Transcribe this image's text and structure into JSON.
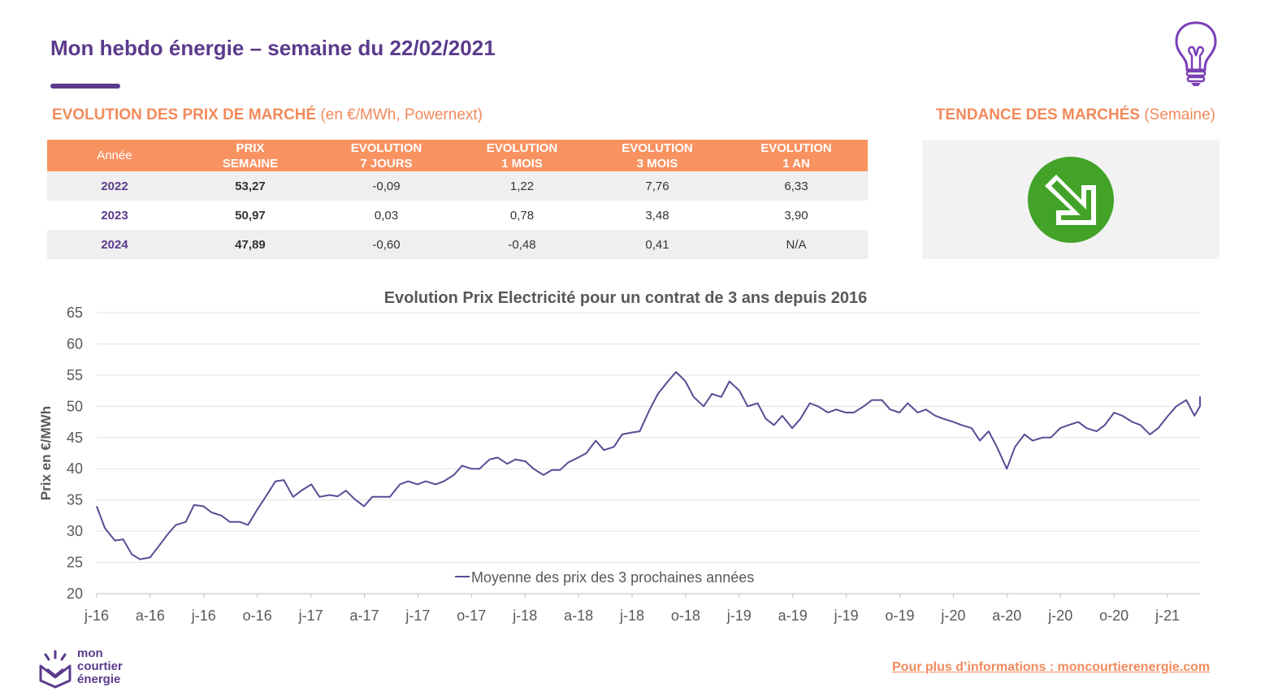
{
  "header": {
    "title": "Mon hebdo énergie – semaine du 22/02/2021",
    "prices_heading_bold": "EVOLUTION DES PRIX DE MARCHÉ",
    "prices_heading_light": " (en €/MWh, Powernext)",
    "trend_heading_bold": "TENDANCE DES MARCHÉS",
    "trend_heading_light": " (Semaine)"
  },
  "colors": {
    "purple": "#5b3b8c",
    "orange": "#f99261",
    "line": "#5b4a95",
    "trend_green": "#43a329"
  },
  "table": {
    "headers": [
      [
        "Année"
      ],
      [
        "PRIX",
        "SEMAINE"
      ],
      [
        "EVOLUTION",
        "7 JOURS"
      ],
      [
        "EVOLUTION",
        "1 MOIS"
      ],
      [
        "EVOLUTION",
        "3 MOIS"
      ],
      [
        "EVOLUTION",
        "1 AN"
      ]
    ],
    "rows": [
      [
        "2022",
        "53,27",
        "-0,09",
        "1,22",
        "7,76",
        "6,33"
      ],
      [
        "2023",
        "50,97",
        "0,03",
        "0,78",
        "3,48",
        "3,90"
      ],
      [
        "2024",
        "47,89",
        "-0,60",
        "-0,48",
        "0,41",
        "N/A"
      ]
    ]
  },
  "trend": {
    "icon": "arrow-down-right-icon",
    "direction": "down"
  },
  "chart_data": {
    "type": "line",
    "title": "Evolution Prix Electricité pour un contrat de 3 ans depuis 2016",
    "xlabel": "",
    "ylabel": "Prix en €/MWh",
    "ylim": [
      20,
      65
    ],
    "yticks": [
      20,
      25,
      30,
      35,
      40,
      45,
      50,
      55,
      60,
      65
    ],
    "xticks": [
      "j-16",
      "a-16",
      "j-16",
      "o-16",
      "j-17",
      "a-17",
      "j-17",
      "o-17",
      "j-18",
      "a-18",
      "j-18",
      "o-18",
      "j-19",
      "a-19",
      "j-19",
      "o-19",
      "j-20",
      "a-20",
      "j-20",
      "o-20",
      "j-21"
    ],
    "grid": true,
    "legend": "bottom-center",
    "series": [
      {
        "name": "Moyenne des prix des 3 prochaines années",
        "points": [
          [
            "2016-01",
            34.0
          ],
          [
            "2016-01-15",
            30.5
          ],
          [
            "2016-02",
            28.5
          ],
          [
            "2016-02-15",
            28.7
          ],
          [
            "2016-03",
            26.3
          ],
          [
            "2016-03-15",
            25.5
          ],
          [
            "2016-04",
            25.8
          ],
          [
            "2016-04-15",
            27.5
          ],
          [
            "2016-05",
            29.5
          ],
          [
            "2016-05-15",
            31.0
          ],
          [
            "2016-06",
            31.5
          ],
          [
            "2016-06-15",
            34.2
          ],
          [
            "2016-07",
            34.0
          ],
          [
            "2016-07-15",
            33.0
          ],
          [
            "2016-08",
            32.5
          ],
          [
            "2016-08-15",
            31.5
          ],
          [
            "2016-09",
            31.5
          ],
          [
            "2016-09-15",
            31.0
          ],
          [
            "2016-10",
            33.5
          ],
          [
            "2016-10-15",
            35.5
          ],
          [
            "2016-11",
            38.0
          ],
          [
            "2016-11-15",
            38.2
          ],
          [
            "2016-12",
            35.5
          ],
          [
            "2016-12-15",
            36.5
          ],
          [
            "2017-01",
            37.5
          ],
          [
            "2017-01-15",
            35.5
          ],
          [
            "2017-02",
            35.8
          ],
          [
            "2017-02-15",
            35.6
          ],
          [
            "2017-03",
            36.5
          ],
          [
            "2017-03-15",
            35.2
          ],
          [
            "2017-04",
            34.0
          ],
          [
            "2017-04-15",
            35.5
          ],
          [
            "2017-05",
            35.5
          ],
          [
            "2017-05-15",
            35.5
          ],
          [
            "2017-06",
            37.5
          ],
          [
            "2017-06-15",
            38.0
          ],
          [
            "2017-07",
            37.5
          ],
          [
            "2017-07-15",
            38.0
          ],
          [
            "2017-08",
            37.5
          ],
          [
            "2017-08-15",
            38.0
          ],
          [
            "2017-09",
            39.0
          ],
          [
            "2017-09-15",
            40.5
          ],
          [
            "2017-10",
            40.0
          ],
          [
            "2017-10-15",
            40.0
          ],
          [
            "2017-11",
            41.5
          ],
          [
            "2017-11-15",
            41.8
          ],
          [
            "2017-12",
            40.8
          ],
          [
            "2017-12-15",
            41.5
          ],
          [
            "2018-01",
            41.2
          ],
          [
            "2018-01-15",
            40.0
          ],
          [
            "2018-02",
            39.0
          ],
          [
            "2018-02-15",
            39.8
          ],
          [
            "2018-03",
            39.8
          ],
          [
            "2018-03-15",
            41.0
          ],
          [
            "2018-04",
            41.8
          ],
          [
            "2018-04-15",
            42.5
          ],
          [
            "2018-05",
            44.5
          ],
          [
            "2018-05-15",
            43.0
          ],
          [
            "2018-06",
            43.5
          ],
          [
            "2018-06-15",
            45.5
          ],
          [
            "2018-07",
            45.8
          ],
          [
            "2018-07-15",
            46.0
          ],
          [
            "2018-08",
            49.5
          ],
          [
            "2018-08-15",
            52.0
          ],
          [
            "2018-09",
            54.0
          ],
          [
            "2018-09-15",
            55.5
          ],
          [
            "2018-10",
            54.0
          ],
          [
            "2018-10-15",
            51.5
          ],
          [
            "2018-11",
            50.0
          ],
          [
            "2018-11-15",
            52.0
          ],
          [
            "2018-12",
            51.5
          ],
          [
            "2018-12-15",
            54.0
          ],
          [
            "2019-01",
            52.5
          ],
          [
            "2019-01-15",
            50.0
          ],
          [
            "2019-02",
            50.5
          ],
          [
            "2019-02-15",
            48.0
          ],
          [
            "2019-03",
            47.0
          ],
          [
            "2019-03-15",
            48.5
          ],
          [
            "2019-04",
            46.5
          ],
          [
            "2019-04-15",
            48.0
          ],
          [
            "2019-05",
            50.5
          ],
          [
            "2019-05-15",
            50.0
          ],
          [
            "2019-06",
            49.0
          ],
          [
            "2019-06-15",
            49.5
          ],
          [
            "2019-07",
            49.0
          ],
          [
            "2019-07-15",
            49.0
          ],
          [
            "2019-08",
            50.0
          ],
          [
            "2019-08-15",
            51.0
          ],
          [
            "2019-09",
            51.0
          ],
          [
            "2019-09-15",
            49.5
          ],
          [
            "2019-10",
            49.0
          ],
          [
            "2019-10-15",
            50.5
          ],
          [
            "2019-11",
            49.0
          ],
          [
            "2019-11-15",
            49.5
          ],
          [
            "2019-12",
            48.5
          ],
          [
            "2019-12-15",
            48.0
          ],
          [
            "2020-01",
            47.5
          ],
          [
            "2020-01-15",
            47.0
          ],
          [
            "2020-02",
            46.5
          ],
          [
            "2020-02-15",
            44.5
          ],
          [
            "2020-03",
            46.0
          ],
          [
            "2020-03-15",
            43.5
          ],
          [
            "2020-04",
            40.0
          ],
          [
            "2020-04-15",
            43.5
          ],
          [
            "2020-05",
            45.5
          ],
          [
            "2020-05-15",
            44.5
          ],
          [
            "2020-06",
            45.0
          ],
          [
            "2020-06-15",
            45.0
          ],
          [
            "2020-07",
            46.5
          ],
          [
            "2020-07-15",
            47.0
          ],
          [
            "2020-08",
            47.5
          ],
          [
            "2020-08-15",
            46.5
          ],
          [
            "2020-09",
            46.0
          ],
          [
            "2020-09-15",
            47.0
          ],
          [
            "2020-10",
            49.0
          ],
          [
            "2020-10-15",
            48.5
          ],
          [
            "2020-11",
            47.5
          ],
          [
            "2020-11-15",
            47.0
          ],
          [
            "2020-12",
            45.5
          ],
          [
            "2020-12-15",
            46.5
          ],
          [
            "2021-01",
            48.5
          ],
          [
            "2021-01-15",
            50.0
          ],
          [
            "2021-02",
            51.0
          ],
          [
            "2021-02-15",
            48.5
          ],
          [
            "2021-03",
            50.0
          ],
          [
            "2021-03-10",
            51.5
          ],
          [
            "2021-03-20",
            50.8
          ]
        ]
      }
    ]
  },
  "footer": {
    "logo_line1": "mon",
    "logo_line2": "courtier",
    "logo_line3": "énergie",
    "link_text": "Pour plus d’informations : moncourtierenergie.com"
  }
}
